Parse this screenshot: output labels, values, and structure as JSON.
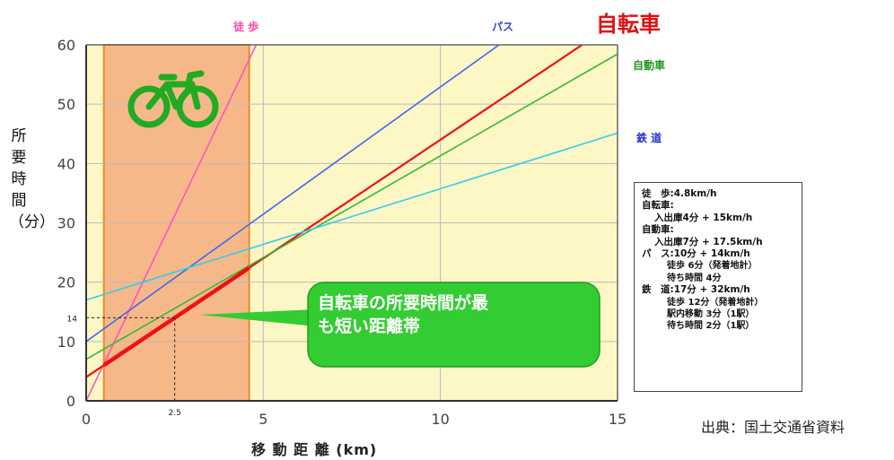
{
  "chart_data": {
    "type": "line",
    "xlabel": "移 動 距 離 (km)",
    "ylabel": "所要時間（分）",
    "xlim": [
      0,
      15
    ],
    "ylim": [
      0,
      60
    ],
    "x_ticks": [
      "0",
      "5",
      "10",
      "15"
    ],
    "y_ticks": [
      "0",
      "10",
      "20",
      "30",
      "40",
      "50",
      "60"
    ],
    "grid": true,
    "highlight_range_km": [
      0.5,
      4.6
    ],
    "series": [
      {
        "name": "徒 歩",
        "color": "#ff55bb",
        "intercept": 0,
        "slope_min_per_km": 12.5
      },
      {
        "name": "パス",
        "color": "#4466ee",
        "intercept": 10,
        "slope_min_per_km": 4.29
      },
      {
        "name": "自転車",
        "color": "#ee1111",
        "intercept": 4,
        "slope_min_per_km": 4.0
      },
      {
        "name": "自動車",
        "color": "#33bb33",
        "intercept": 7,
        "slope_min_per_km": 3.43
      },
      {
        "name": "鉄 道",
        "color": "#33ccee",
        "intercept": 17,
        "slope_min_per_km": 1.875
      }
    ],
    "annotation_point": {
      "x": 2.5,
      "y": 14,
      "x_label": "2.5",
      "y_label": "14"
    },
    "callout_lines": [
      "自転車の所要時間が最",
      "も短い距離帯"
    ]
  },
  "labels": {
    "bike_title": "自転車",
    "walk": "徒 歩",
    "bus": "パス",
    "car": "自動車",
    "rail": "鉄 道",
    "source": "出典：国土交通省資料"
  },
  "legend": {
    "lines": [
      "徒　歩:4.8km/h",
      "自転車:",
      "入出庫4分 + 15km/h",
      "自動車:",
      "入出庫7分 + 17.5km/h",
      "パ　ス:10分 + 14km/h",
      "徒歩 6分（発着地計）",
      "待ち時間 4分",
      "鉄　道:17分 + 32km/h",
      "徒歩 12分（発着地計）",
      "駅内移動 3分（1駅）",
      "待ち時間 2分（1駅）"
    ]
  },
  "colors": {
    "plot_bg": "#fdf7c6",
    "highlight": "#f7b889",
    "highlight_border": "#e88a2a",
    "callout": "#33cc33",
    "bike_icon": "#22aa22"
  }
}
